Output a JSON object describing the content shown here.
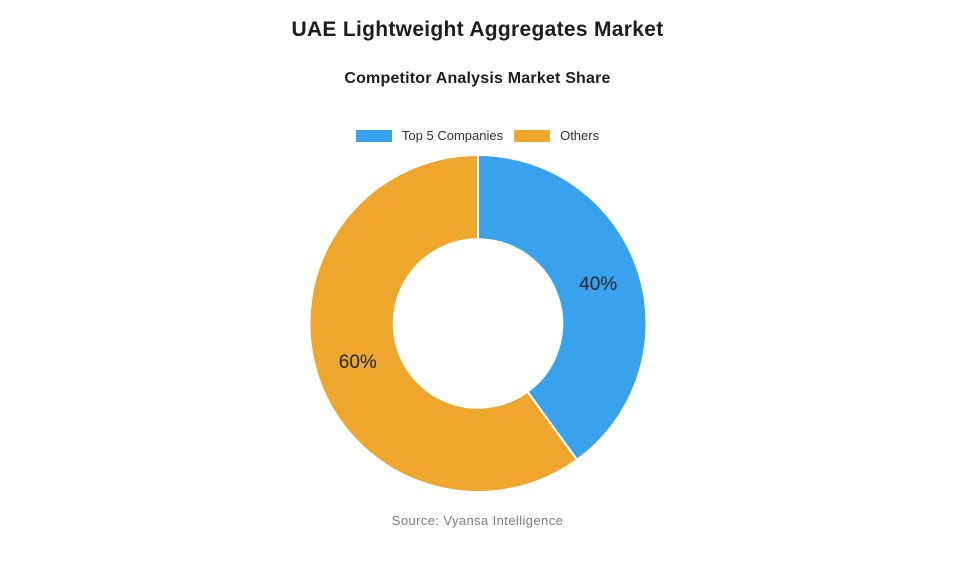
{
  "header": {
    "title": "UAE Lightweight Aggregates Market",
    "subtitle": "Competitor Analysis Market Share"
  },
  "chart_data": {
    "type": "pie",
    "subtype": "donut",
    "title": "UAE Lightweight Aggregates Market",
    "subtitle": "Competitor Analysis Market Share",
    "categories": [
      "Top 5 Companies",
      "Others"
    ],
    "values": [
      40,
      60
    ],
    "value_labels": [
      "40%",
      "60%"
    ],
    "unit": "%",
    "colors": [
      "#38A3EC",
      "#EFA62C"
    ],
    "border_color": "#ffffff",
    "label_color": "#20242c",
    "start_angle_deg": 0,
    "direction": "clockwise",
    "inner_radius_ratio": 0.5,
    "legend_position": "top"
  },
  "footer": {
    "source": "Source: Vyansa Intelligence"
  }
}
